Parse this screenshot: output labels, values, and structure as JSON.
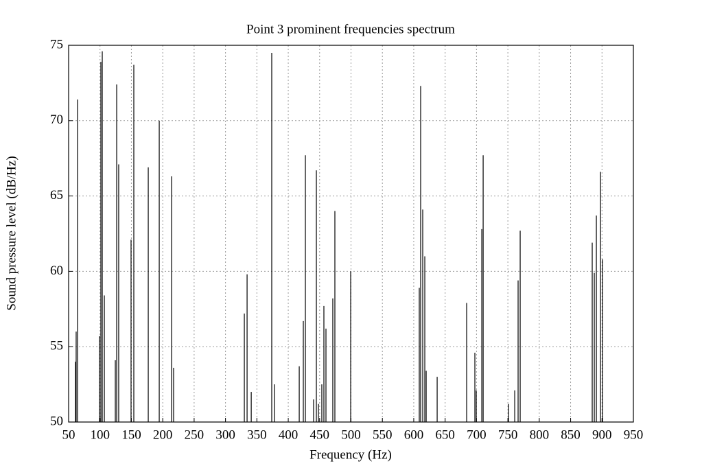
{
  "chart_data": {
    "type": "stem",
    "title": "Point 3 prominent frequencies spectrum",
    "x_label": "Frequency (Hz)",
    "y_label": "Sound pressure level (dB/Hz)",
    "x": [
      60.9,
      62.0,
      64.2,
      99.2,
      101.4,
      103.6,
      106.9,
      124.4,
      126.6,
      129.8,
      149.5,
      153.9,
      176.9,
      194.4,
      214.1,
      217.3,
      330.0,
      334.4,
      341.0,
      373.7,
      378.1,
      417.5,
      424.0,
      427.3,
      440.4,
      444.8,
      448.1,
      453.5,
      456.8,
      460.1,
      471.0,
      474.3,
      499.5,
      608.8,
      611.0,
      614.3,
      617.6,
      619.8,
      637.3,
      684.3,
      697.4,
      699.6,
      708.4,
      710.6,
      751.0,
      760.9,
      766.3,
      769.6,
      884.4,
      887.7,
      891.0,
      897.6,
      900.9
    ],
    "values": [
      54.0,
      56.0,
      71.4,
      55.7,
      73.9,
      74.6,
      58.4,
      54.1,
      72.4,
      67.1,
      62.1,
      73.7,
      66.9,
      70.0,
      66.3,
      53.6,
      57.2,
      59.8,
      52.0,
      74.5,
      52.5,
      53.7,
      56.7,
      67.7,
      51.5,
      66.7,
      51.2,
      52.5,
      57.7,
      56.2,
      58.2,
      64.0,
      60.0,
      58.9,
      72.3,
      64.1,
      61.0,
      53.4,
      53.0,
      57.9,
      54.6,
      52.1,
      62.8,
      67.7,
      51.2,
      52.1,
      59.4,
      62.7,
      61.9,
      59.9,
      63.7,
      66.6,
      60.8
    ],
    "color": "#000000",
    "xlim": [
      50,
      950
    ],
    "ylim": [
      50,
      75
    ],
    "xticks": [
      50,
      100,
      150,
      200,
      250,
      300,
      350,
      400,
      450,
      500,
      550,
      600,
      650,
      700,
      750,
      800,
      850,
      900,
      950
    ],
    "yticks": [
      50,
      55,
      60,
      65,
      70,
      75
    ],
    "grid": true
  }
}
